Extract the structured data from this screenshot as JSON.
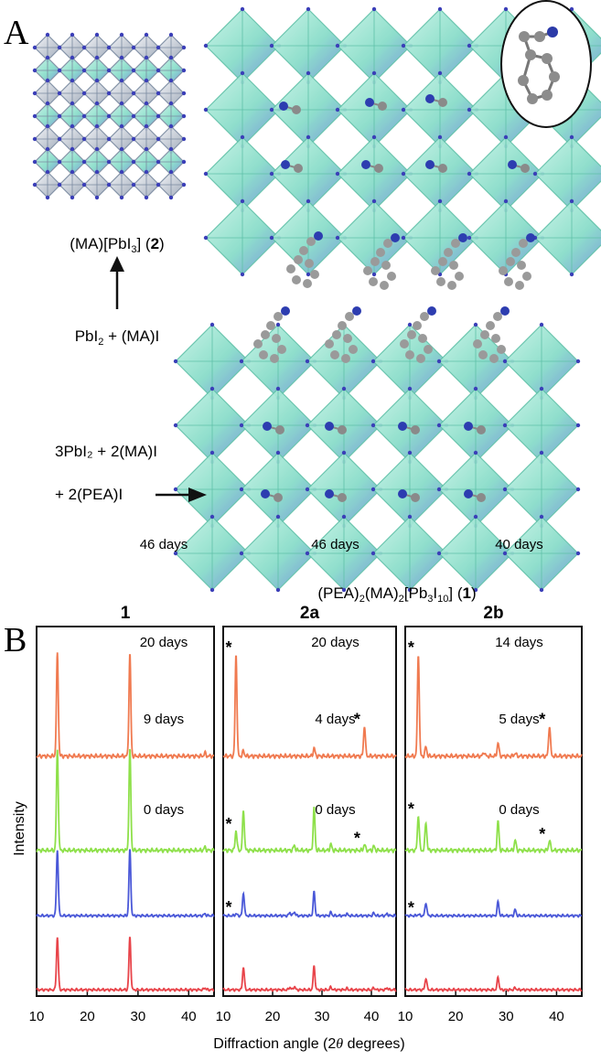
{
  "panel_a": {
    "label": "A",
    "compound_2": {
      "pre": "(MA)[PbI",
      "sub": "3",
      "mid": "] (",
      "bold": "2",
      "post": ")"
    },
    "reaction_2": {
      "pre": "PbI",
      "sub": "2",
      "post": " + (MA)I"
    },
    "reaction_1_line1": "3PbI₂ + 2(MA)I",
    "reaction_1_line2": "+ 2(PEA)I",
    "compound_1": {
      "a": "(PEA)",
      "s1": "2",
      "b": "(MA)",
      "s2": "2",
      "c": "[Pb",
      "s3": "3",
      "d": "I",
      "s4": "10",
      "e": "] (",
      "bold": "1",
      "f": ")"
    }
  },
  "panel_b": {
    "label": "B",
    "ylabel": "Intensity",
    "xlabel": {
      "pre": "Diffraction angle (2",
      "theta": "θ",
      "post": " degrees)"
    },
    "colors": {
      "orange": "#f07a50",
      "green": "#8ee04a",
      "blue": "#4a58d8",
      "red": "#e8444a"
    }
  },
  "chart_data": [
    {
      "type": "line",
      "title": "1",
      "xlim": [
        10,
        45
      ],
      "xticks": [
        "10",
        "20",
        "30",
        "40"
      ],
      "series": [
        {
          "name": "46 days",
          "color": "#f07a50",
          "peaks": [
            [
              14.1,
              1.0
            ],
            [
              28.4,
              1.0
            ],
            [
              43.2,
              0.03
            ]
          ]
        },
        {
          "name": "20 days",
          "color": "#8ee04a",
          "peaks": [
            [
              14.1,
              1.0
            ],
            [
              28.4,
              1.0
            ],
            [
              43.2,
              0.03
            ]
          ]
        },
        {
          "name": "9 days",
          "color": "#4a58d8",
          "peaks": [
            [
              14.1,
              1.0
            ],
            [
              28.4,
              1.0
            ],
            [
              43.2,
              0.03
            ]
          ]
        },
        {
          "name": "0 days",
          "color": "#e8444a",
          "peaks": [
            [
              14.1,
              0.8
            ],
            [
              28.4,
              0.8
            ],
            [
              43.2,
              0.03
            ]
          ]
        }
      ]
    },
    {
      "type": "line",
      "title": "2a",
      "xlim": [
        10,
        45
      ],
      "xticks": [
        "10",
        "20",
        "30",
        "40"
      ],
      "series": [
        {
          "name": "46 days",
          "color": "#f07a50",
          "peaks": [
            [
              12.6,
              1.0
            ],
            [
              14.1,
              0.05
            ],
            [
              28.4,
              0.08
            ],
            [
              38.6,
              0.3
            ]
          ],
          "stars": [
            12.6,
            38.6
          ]
        },
        {
          "name": "20 days",
          "color": "#8ee04a",
          "peaks": [
            [
              12.6,
              0.2
            ],
            [
              14.1,
              0.4
            ],
            [
              24.4,
              0.05
            ],
            [
              28.4,
              0.42
            ],
            [
              31.8,
              0.06
            ],
            [
              38.6,
              0.06
            ],
            [
              40.5,
              0.04
            ]
          ],
          "stars": [
            12.6,
            38.6
          ]
        },
        {
          "name": "4 days",
          "color": "#4a58d8",
          "peaks": [
            [
              12.6,
              0.03
            ],
            [
              14.1,
              0.35
            ],
            [
              23.5,
              0.05
            ],
            [
              24.4,
              0.06
            ],
            [
              28.4,
              0.36
            ],
            [
              31.8,
              0.05
            ],
            [
              35,
              0.03
            ],
            [
              40.5,
              0.04
            ],
            [
              43.2,
              0.03
            ]
          ],
          "stars": [
            12.6
          ]
        },
        {
          "name": "0 days",
          "color": "#e8444a",
          "peaks": [
            [
              14.1,
              0.35
            ],
            [
              23.5,
              0.04
            ],
            [
              24.4,
              0.05
            ],
            [
              28.4,
              0.36
            ],
            [
              31.8,
              0.04
            ],
            [
              35,
              0.02
            ],
            [
              40.5,
              0.03
            ],
            [
              43.2,
              0.03
            ]
          ],
          "stars": []
        }
      ]
    },
    {
      "type": "line",
      "title": "2b",
      "xlim": [
        10,
        45
      ],
      "xticks": [
        "10",
        "20",
        "30",
        "40"
      ],
      "series": [
        {
          "name": "40 days",
          "color": "#f07a50",
          "peaks": [
            [
              12.6,
              1.0
            ],
            [
              14.1,
              0.09
            ],
            [
              25.6,
              0.04
            ],
            [
              28.4,
              0.13
            ],
            [
              31.8,
              0.03
            ],
            [
              38.6,
              0.3
            ]
          ],
          "stars": [
            12.6,
            38.6
          ]
        },
        {
          "name": "14 days",
          "color": "#8ee04a",
          "peaks": [
            [
              12.6,
              0.35
            ],
            [
              14.1,
              0.28
            ],
            [
              28.4,
              0.29
            ],
            [
              31.8,
              0.1
            ],
            [
              38.6,
              0.1
            ]
          ],
          "stars": [
            12.6,
            38.6
          ]
        },
        {
          "name": "5 days",
          "color": "#4a58d8",
          "peaks": [
            [
              12.6,
              0.02
            ],
            [
              14.1,
              0.2
            ],
            [
              28.4,
              0.21
            ],
            [
              31.8,
              0.09
            ]
          ],
          "stars": [
            12.6
          ]
        },
        {
          "name": "0 days",
          "color": "#e8444a",
          "peaks": [
            [
              14.1,
              0.18
            ],
            [
              28.4,
              0.19
            ],
            [
              31.8,
              0.03
            ]
          ],
          "stars": []
        }
      ]
    }
  ]
}
